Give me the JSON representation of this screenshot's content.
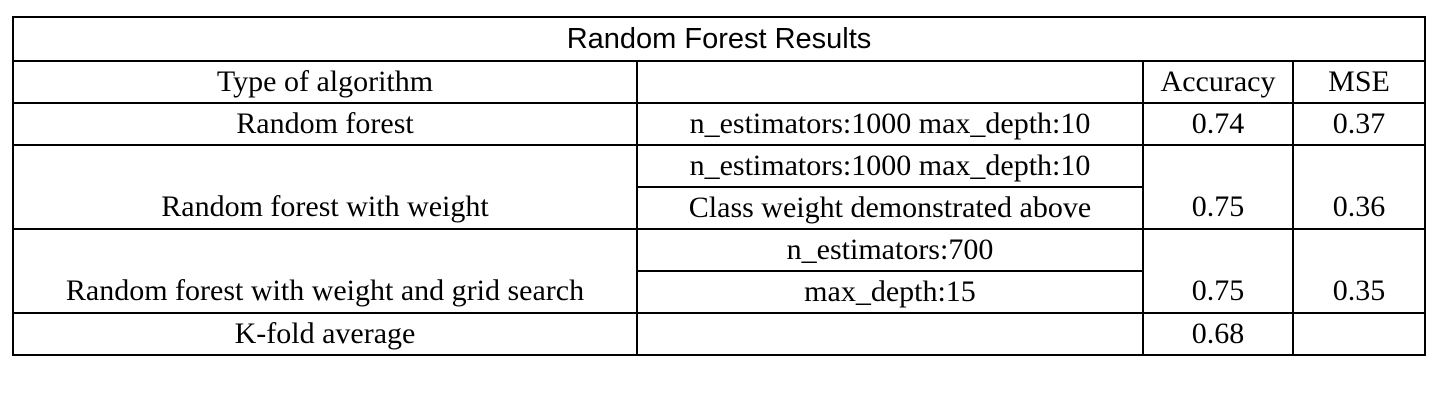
{
  "table": {
    "title": "Random Forest Results",
    "headers": {
      "type": "Type of algorithm",
      "params": "",
      "accuracy": "Accuracy",
      "mse": "MSE"
    },
    "rows": [
      {
        "type": "Random forest",
        "params": [
          "n_estimators:1000 max_depth:10"
        ],
        "accuracy": "0.74",
        "mse": "0.37"
      },
      {
        "type": "Random forest with weight",
        "params": [
          "n_estimators:1000 max_depth:10",
          "Class weight demonstrated above"
        ],
        "accuracy": "0.75",
        "mse": "0.36"
      },
      {
        "type": "Random forest with weight and grid search",
        "params": [
          "n_estimators:700",
          "max_depth:15"
        ],
        "accuracy": "0.75",
        "mse": "0.35"
      },
      {
        "type": "K-fold average",
        "params": [
          ""
        ],
        "accuracy": "0.68",
        "mse": ""
      }
    ]
  }
}
